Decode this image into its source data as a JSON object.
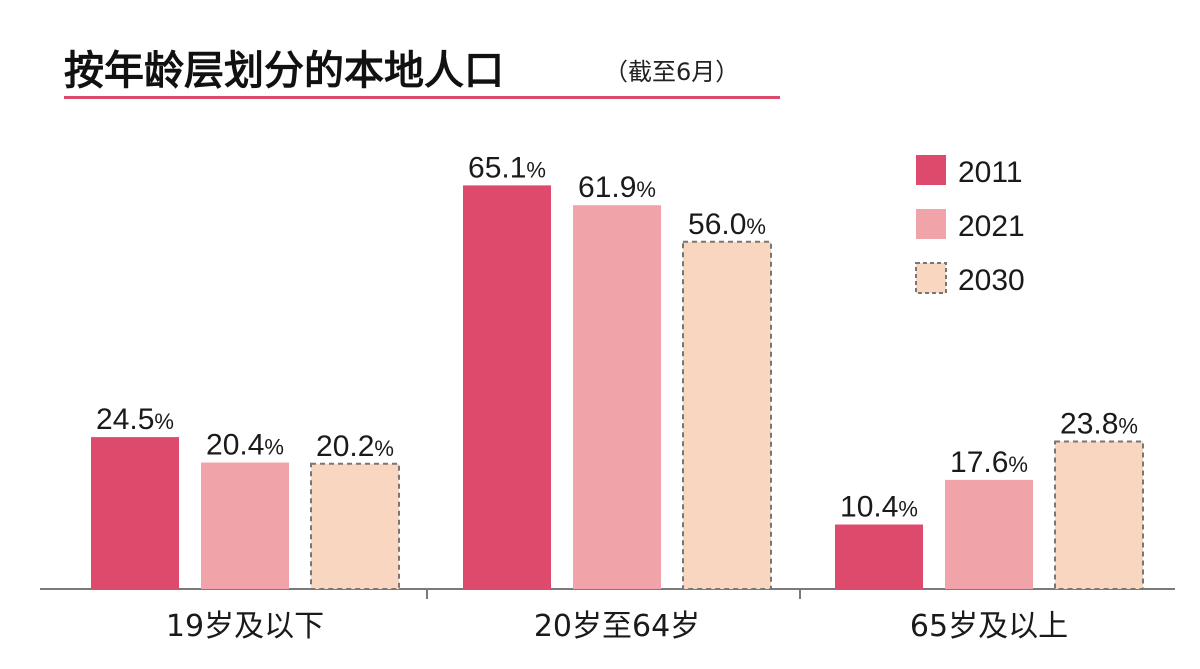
{
  "header": {
    "title": "按年龄层划分的本地人口",
    "subtitle": "（截至6月）"
  },
  "colors": {
    "2011": "#de4a6c",
    "2021": "#f0a3a8",
    "2030": "#f8d6c0",
    "rule": "#d94a6b"
  },
  "chart_data": {
    "type": "bar",
    "title": "按年龄层划分的本地人口",
    "subtitle": "（截至6月）",
    "categories": [
      "19岁及以下",
      "20岁至64岁",
      "65岁及以上"
    ],
    "series": [
      {
        "name": "2011",
        "values": [
          24.5,
          65.1,
          10.4
        ],
        "labels": [
          "24.5",
          "65.1",
          "10.4"
        ]
      },
      {
        "name": "2021",
        "values": [
          20.4,
          61.9,
          17.6
        ],
        "labels": [
          "20.4",
          "61.9",
          "17.6"
        ]
      },
      {
        "name": "2030",
        "values": [
          20.2,
          56.0,
          23.8
        ],
        "labels": [
          "20.2",
          "56.0",
          "23.8"
        ],
        "style": "dashed"
      }
    ],
    "value_suffix": "%",
    "ylim": [
      0,
      70
    ],
    "grid": false,
    "legend_position": "top-right"
  }
}
